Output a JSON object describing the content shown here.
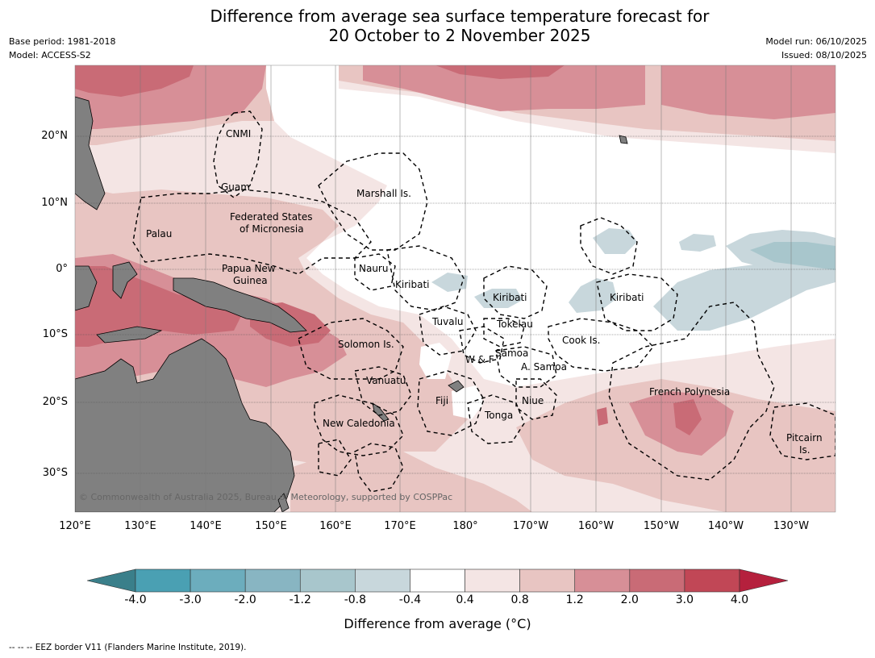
{
  "title": {
    "line1": "Difference from average sea surface temperature forecast for",
    "line2": "20 October to 2 November 2025"
  },
  "meta": {
    "base_period": "Base period: 1981-2018",
    "model": "Model: ACCESS-S2",
    "model_run": "Model run: 06/10/2025",
    "issued": "Issued: 08/10/2025"
  },
  "axes": {
    "lat_labels": [
      "20°N",
      "10°N",
      "0°",
      "10°S",
      "20°S",
      "30°S"
    ],
    "lon_labels": [
      "120°E",
      "130°E",
      "140°E",
      "150°E",
      "160°E",
      "170°E",
      "180°",
      "170°W",
      "160°W",
      "150°W",
      "140°W",
      "130°W"
    ]
  },
  "regions": {
    "cnmi": "CNMI",
    "guam": "Guam",
    "marshall": "Marshall Is.",
    "fsm1": "Federated States",
    "fsm2": "of Micronesia",
    "palau": "Palau",
    "png1": "Papua New",
    "png2": "Guinea",
    "nauru": "Nauru",
    "kiribati_w": "Kiribati",
    "kiribati_c": "Kiribati",
    "kiribati_e": "Kiribati",
    "tuvalu": "Tuvalu",
    "tokelau": "Tokelau",
    "cook": "Cook Is.",
    "solomon": "Solomon Is.",
    "wf": "W & F",
    "samoa": "Samoa",
    "asamoa": "A. Samoa",
    "vanuatu": "Vanuatu",
    "fiji": "Fiji",
    "niue": "Niue",
    "tonga": "Tonga",
    "newcal": "New Caledonia",
    "frpoly": "French Polynesia",
    "pitcairn1": "Pitcairn",
    "pitcairn2": "Is."
  },
  "colorbar": {
    "labels": [
      "-4.0",
      "-3.0",
      "-2.0",
      "-1.2",
      "-0.8",
      "-0.4",
      "0.4",
      "0.8",
      "1.2",
      "2.0",
      "3.0",
      "4.0"
    ],
    "colors": [
      "#4aa0b3",
      "#6cadbd",
      "#88b5c2",
      "#a8c6cc",
      "#c8d7dc",
      "#ffffff",
      "#f4e5e4",
      "#e8c5c2",
      "#d78f97",
      "#c96b76",
      "#c14756"
    ],
    "extend_low_color": "#3a7f8a",
    "extend_high_color": "#b5203d",
    "title": "Difference from average (°C)"
  },
  "colors": {
    "land": "#808080",
    "anom_0_4": "#f4e5e4",
    "anom_0_8": "#e8c5c2",
    "anom_1_2": "#d78f97",
    "anom_2_0": "#c96b76",
    "cool_0_4": "#c8d7dc",
    "cool_0_8": "#a8c6cc"
  },
  "copyright": "© Commonwealth of Australia 2025, Bureau of Meteorology, supported by COSPPac",
  "footer": "--  --  -- EEZ border V11 (Flanders Marine Institute, 2019)."
}
